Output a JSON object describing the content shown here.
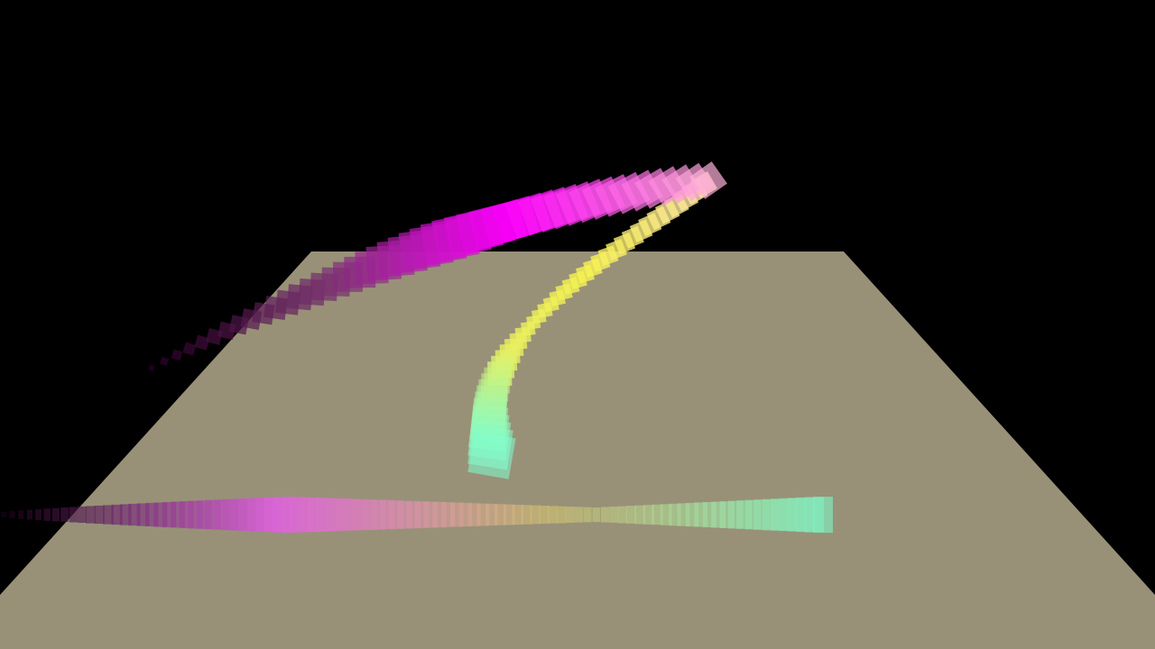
{
  "scene": {
    "background_color": "#000000",
    "floor_color": "#989178",
    "trails": [
      {
        "name": "magenta-arc",
        "colors": [
          "#2a0028",
          "#7a2f70",
          "#ff00ff",
          "#ffb0d8"
        ]
      },
      {
        "name": "yellow-green-column",
        "colors": [
          "#ffe8a8",
          "#f7f250",
          "#e8f060",
          "#7fffd0"
        ]
      },
      {
        "name": "floor-band",
        "colors": [
          "#1a0018",
          "#e060e0",
          "#d0c070",
          "#80f0c0"
        ]
      }
    ]
  }
}
